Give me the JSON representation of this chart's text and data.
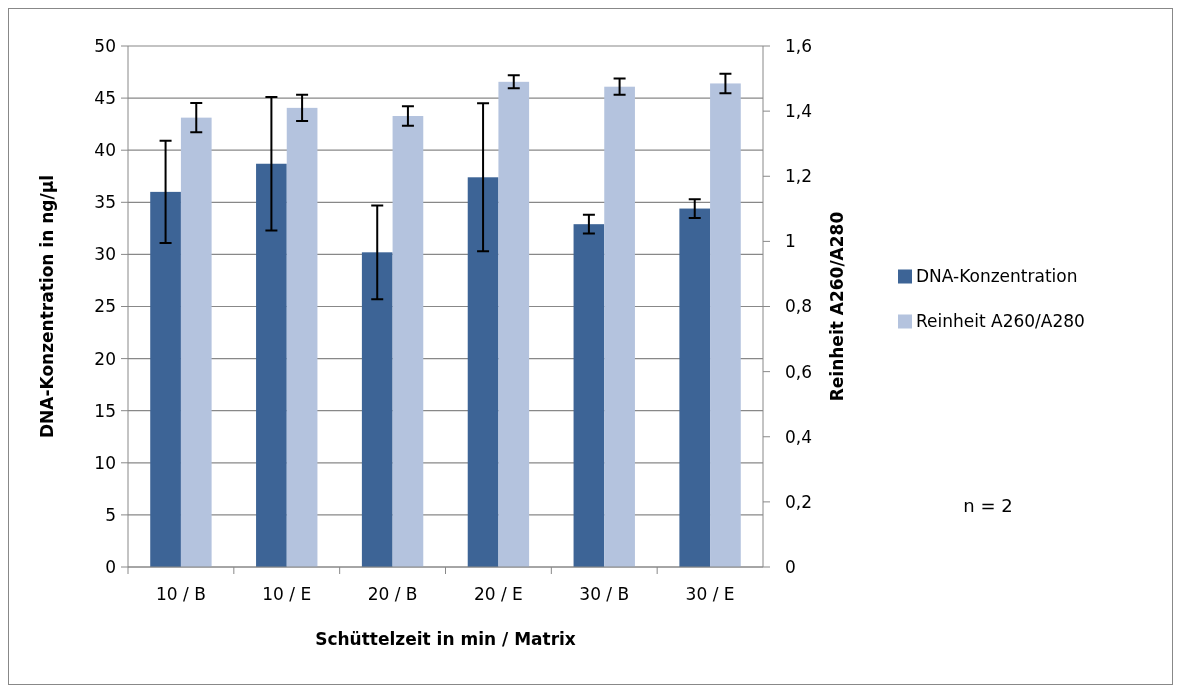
{
  "chart_data": {
    "type": "bar",
    "xlabel": "Schüttelzeit in min / Matrix",
    "ylabel": "DNA-Konzentration in ng/µl",
    "y2label": "Reinheit A260/A280",
    "categories": [
      "10 / B",
      "10 / E",
      "20 / B",
      "20 / E",
      "30 / B",
      "30 / E"
    ],
    "series": [
      {
        "name": "DNA-Konzentration",
        "color": "#3d6496",
        "values": [
          36,
          38.7,
          30.2,
          37.4,
          32.9,
          34.4
        ],
        "errors": [
          4.9,
          6.4,
          4.5,
          7.1,
          0.9,
          0.9
        ]
      },
      {
        "name": "Reinheit A260/A280",
        "color": "#b4c3de",
        "axis": "y2",
        "values": [
          1.38,
          1.41,
          1.385,
          1.49,
          1.475,
          1.485
        ],
        "errors": [
          0.045,
          0.04,
          0.03,
          0.02,
          0.025,
          0.03
        ]
      }
    ],
    "ylim": [
      0,
      50
    ],
    "yticks": [
      0,
      5,
      10,
      15,
      20,
      25,
      30,
      35,
      40,
      45,
      50
    ],
    "y2lim": [
      0,
      1.6
    ],
    "y2ticks": [
      0,
      {
        "value": 0.2,
        "label": "0,2"
      },
      {
        "value": 0.4,
        "label": "0,4"
      },
      {
        "value": 0.6,
        "label": "0,6"
      },
      {
        "value": 0.8,
        "label": "0,8"
      },
      1,
      {
        "value": 1.2,
        "label": "1,2"
      },
      {
        "value": 1.4,
        "label": "1,4"
      },
      {
        "value": 1.6,
        "label": "1,6"
      }
    ],
    "grid": "y",
    "legend": "right",
    "annotations": [
      "n = 2"
    ]
  }
}
